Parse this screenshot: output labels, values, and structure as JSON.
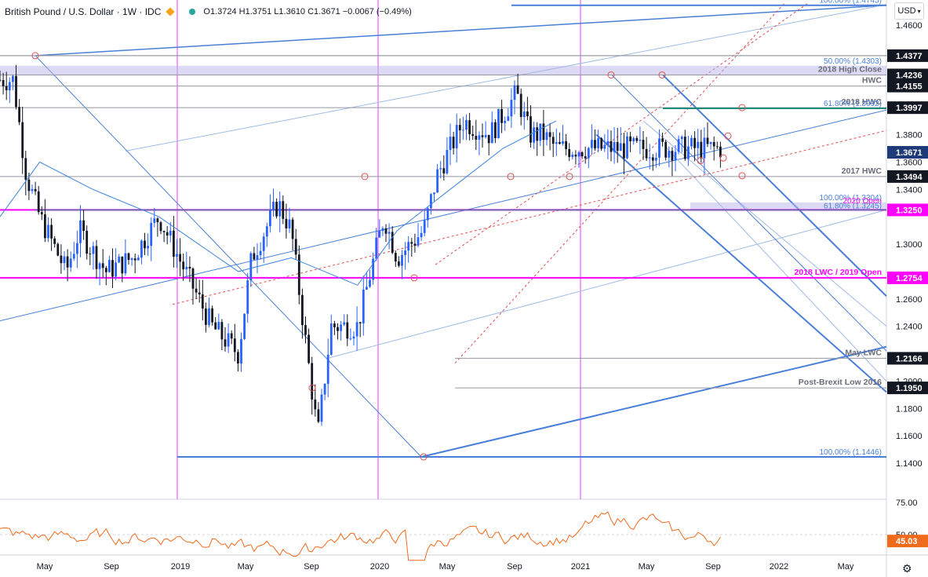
{
  "header": {
    "title": "British Pound / U.S. Dollar · 1W · IDC",
    "ohlc": "O1.3724 H1.3751 L1.3610 C1.3671 −0.0067 (−0.49%)"
  },
  "currency_button": "USD",
  "colors": {
    "up": "#2962ff",
    "down": "#131722",
    "fib": "#4a7fd8",
    "magenta": "#e040fb",
    "pink_line": "#ff00ff",
    "teal": "#1a8a7a",
    "rsi": "#f06a1c",
    "ma": "#3b84e0",
    "current_price_bg": "#1e3a78",
    "level_bg": "#131722"
  },
  "axis": {
    "y_ticks": [
      "1.4600",
      "1.3800",
      "1.3600",
      "1.3400",
      "1.3000",
      "1.2600",
      "1.2400",
      "1.2000",
      "1.1800",
      "1.1600",
      "1.1400"
    ],
    "x_ticks": [
      "May",
      "Sep",
      "2019",
      "May",
      "Sep",
      "2020",
      "May",
      "Sep",
      "2021",
      "May",
      "Sep",
      "2022",
      "May"
    ],
    "rsi_ticks": [
      "75.00",
      "50.00"
    ],
    "rsi_value": "45.03"
  },
  "levels": [
    {
      "value": "1.4377",
      "label": "",
      "style": "plain"
    },
    {
      "value": "1.4236",
      "label": "2018 High Close",
      "style": "plain"
    },
    {
      "value": "1.4155",
      "label": "HWC",
      "style": "plain"
    },
    {
      "value": "1.3997",
      "label": "2018 HWC",
      "style": "plain"
    },
    {
      "value": "1.3671",
      "label": "",
      "style": "current"
    },
    {
      "value": "1.3494",
      "label": "2017 HWC",
      "style": "plain"
    },
    {
      "value": "1.3250",
      "label": "",
      "style": "pink"
    },
    {
      "value": "1.2754",
      "label": "2018 LWC / 2019 Open",
      "style": "pink"
    },
    {
      "value": "1.2166",
      "label": "May LWC",
      "style": "plain"
    },
    {
      "value": "1.1950",
      "label": "Post-Brexit Low 2016",
      "style": "plain"
    }
  ],
  "fib_labels": [
    {
      "text": "100.00% (1.4745)",
      "price": 1.4745
    },
    {
      "text": "50.00% (1.4303)",
      "price": 1.4303
    },
    {
      "text": "61.80% (1.3992)",
      "price": 1.3992
    },
    {
      "text": "100.00% (1.3304)",
      "price": 1.3304
    },
    {
      "text": "2020 Open",
      "price": 1.328
    },
    {
      "text": "61.80% (1.3245)",
      "price": 1.3245
    },
    {
      "text": "100.00% (1.1446)",
      "price": 1.1446
    }
  ],
  "chart_data": {
    "type": "candlestick",
    "title": "British Pound / U.S. Dollar · 1W · IDC",
    "ylim": [
      1.138,
      1.476
    ],
    "x_range": [
      "2018-03",
      "2022-06"
    ],
    "last_close": 1.3671,
    "rsi_last": 45.03,
    "price_path": [
      [
        "2018-04",
        1.42
      ],
      [
        "2018-05",
        1.35
      ],
      [
        "2018-06",
        1.32
      ],
      [
        "2018-08",
        1.28
      ],
      [
        "2018-09",
        1.31
      ],
      [
        "2018-11",
        1.28
      ],
      [
        "2019-01",
        1.29
      ],
      [
        "2019-03",
        1.32
      ],
      [
        "2019-05",
        1.28
      ],
      [
        "2019-07",
        1.24
      ],
      [
        "2019-09",
        1.22
      ],
      [
        "2019-10",
        1.29
      ],
      [
        "2019-12",
        1.33
      ],
      [
        "2020-01",
        1.31
      ],
      [
        "2020-03",
        1.16
      ],
      [
        "2020-04",
        1.24
      ],
      [
        "2020-06",
        1.24
      ],
      [
        "2020-07",
        1.28
      ],
      [
        "2020-08",
        1.32
      ],
      [
        "2020-09",
        1.29
      ],
      [
        "2020-11",
        1.31
      ],
      [
        "2020-12",
        1.35
      ],
      [
        "2021-02",
        1.39
      ],
      [
        "2021-04",
        1.38
      ],
      [
        "2021-06",
        1.41
      ],
      [
        "2021-07",
        1.38
      ],
      [
        "2021-08",
        1.38
      ],
      [
        "2021-09",
        1.37
      ]
    ],
    "horizontal_levels": [
      1.4377,
      1.4236,
      1.4155,
      1.3997,
      1.3494,
      1.325,
      1.2754,
      1.2166,
      1.195
    ]
  }
}
